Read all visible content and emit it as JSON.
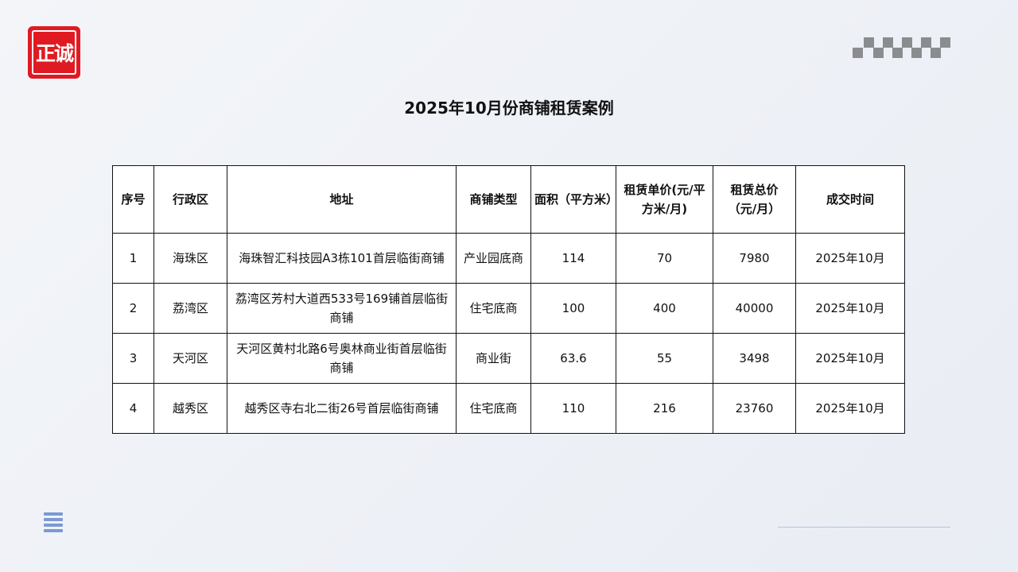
{
  "logo": {
    "text": "正诚",
    "color": "#e01a22"
  },
  "title": "2025年10月份商铺租赁案例",
  "table": {
    "headers": [
      "序号",
      "行政区",
      "地址",
      "商铺类型",
      "面积（平方米）",
      "租赁单价(元/平方米/月)",
      "租赁总价（元/月）",
      "成交时间"
    ],
    "rows": [
      [
        "1",
        "海珠区",
        "海珠智汇科技园A3栋101首层临街商铺",
        "产业园底商",
        "114",
        "70",
        "7980",
        "2025年10月"
      ],
      [
        "2",
        "荔湾区",
        "荔湾区芳村大道西533号169铺首层临街商铺",
        "住宅底商",
        "100",
        "400",
        "40000",
        "2025年10月"
      ],
      [
        "3",
        "天河区",
        "天河区黄村北路6号奥林商业街首层临街商铺",
        "商业街",
        "63.6",
        "55",
        "3498",
        "2025年10月"
      ],
      [
        "4",
        "越秀区",
        "越秀区寺右北二街26号首层临街商铺",
        "住宅底商",
        "110",
        "216",
        "23760",
        "2025年10月"
      ]
    ]
  },
  "icons": {
    "menu": "menu-icon",
    "decoration": "checker-pattern"
  },
  "colors": {
    "accent": "#7d99d4",
    "brand": "#e01a22"
  }
}
